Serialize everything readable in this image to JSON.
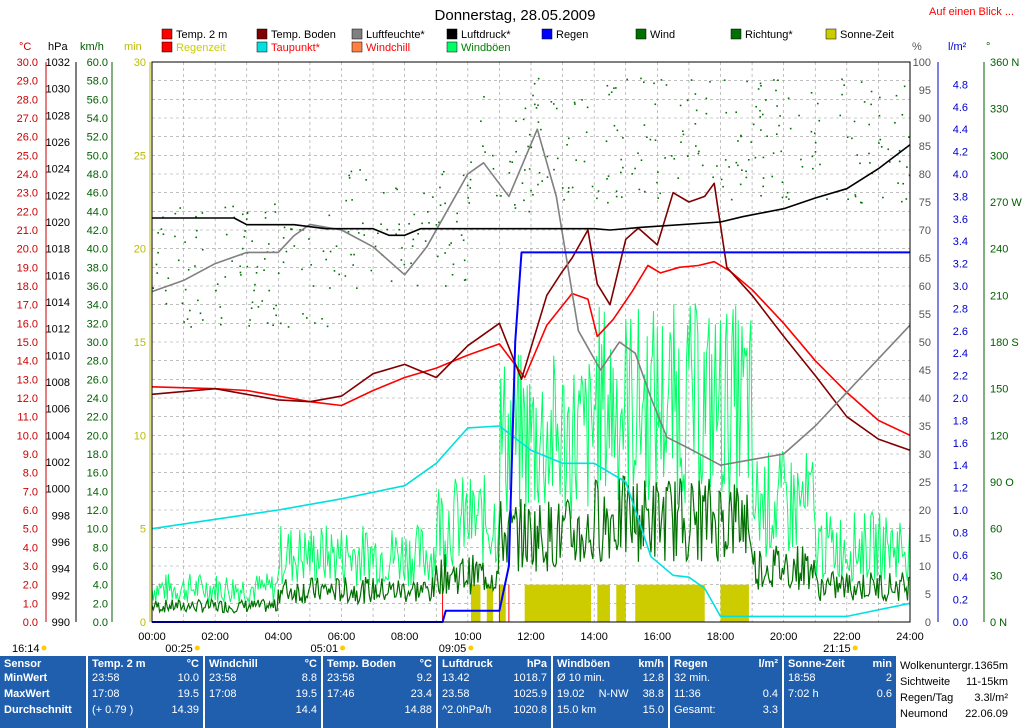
{
  "colors": {
    "temp": "#ff0000",
    "boden": "#800000",
    "feuchte": "#808080",
    "druck": "#000000",
    "taupunkt": "#00e0e0",
    "windchill": "#ff8040",
    "regen": "#0000ff",
    "wind": "#007000",
    "boeen": "#00ff66",
    "richtung": "#007000",
    "sonne": "#cccc00",
    "regenzeit": "#ffcc00"
  },
  "header": {
    "title": "Donnerstag, 28.05.2009",
    "link": "Auf einen Blick ..."
  },
  "legend": [
    {
      "label": "Temp. 2 m",
      "color": "#ff0000",
      "row": 0,
      "col": 0
    },
    {
      "label": "Temp. Boden",
      "color": "#800000",
      "row": 0,
      "col": 1
    },
    {
      "label": "Luftfeuchte*",
      "color": "#808080",
      "row": 0,
      "col": 2
    },
    {
      "label": "Luftdruck*",
      "color": "#000000",
      "row": 0,
      "col": 3
    },
    {
      "label": "Regen",
      "color": "#0000ff",
      "row": 0,
      "col": 4
    },
    {
      "label": "Wind",
      "color": "#007000",
      "row": 0,
      "col": 5
    },
    {
      "label": "Richtung*",
      "color": "#007000",
      "row": 0,
      "col": 6
    },
    {
      "label": "Sonne-Zeit",
      "color": "#cccc00",
      "row": 0,
      "col": 7
    },
    {
      "label": "Regenzeit",
      "color": "#ff0000",
      "row": 1,
      "col": 0,
      "textColor": "#cccc00"
    },
    {
      "label": "Taupunkt*",
      "color": "#00e0e0",
      "row": 1,
      "col": 1,
      "textColor": "#ff0000"
    },
    {
      "label": "Windchill",
      "color": "#ff8040",
      "row": 1,
      "col": 2,
      "textColor": "#ff0000"
    },
    {
      "label": "Windböen",
      "color": "#00ff66",
      "row": 1,
      "col": 3,
      "textColor": "#008000"
    }
  ],
  "axes": {
    "units": {
      "temp": "°C",
      "hpa": "hPa",
      "kmh": "km/h",
      "min": "min",
      "pct": "%",
      "lm2": "l/m²",
      "deg": "°"
    },
    "temp": [
      "30.0",
      "29.0",
      "28.0",
      "27.0",
      "26.0",
      "25.0",
      "24.0",
      "23.0",
      "22.0",
      "21.0",
      "20.0",
      "19.0",
      "18.0",
      "17.0",
      "16.0",
      "15.0",
      "14.0",
      "13.0",
      "12.0",
      "11.0",
      "10.0",
      "9.0",
      "8.0",
      "7.0",
      "6.0",
      "5.0",
      "4.0",
      "3.0",
      "2.0",
      "1.0",
      "0.0"
    ],
    "hpa": [
      "1032",
      "1030",
      "1028",
      "1026",
      "1024",
      "1022",
      "1020",
      "1018",
      "1016",
      "1014",
      "1012",
      "1010",
      "1008",
      "1006",
      "1004",
      "1002",
      "1000",
      "998",
      "996",
      "994",
      "992",
      "990"
    ],
    "kmh": [
      "60.0",
      "58.0",
      "56.0",
      "54.0",
      "52.0",
      "50.0",
      "48.0",
      "46.0",
      "44.0",
      "42.0",
      "40.0",
      "38.0",
      "36.0",
      "34.0",
      "32.0",
      "30.0",
      "28.0",
      "26.0",
      "24.0",
      "22.0",
      "20.0",
      "18.0",
      "16.0",
      "14.0",
      "12.0",
      "10.0",
      "8.0",
      "6.0",
      "4.0",
      "2.0",
      "0.0"
    ],
    "min": [
      "30",
      "25",
      "20",
      "15",
      "10",
      "5",
      "0"
    ],
    "pct": [
      "100",
      "95",
      "90",
      "85",
      "80",
      "75",
      "70",
      "65",
      "60",
      "55",
      "50",
      "45",
      "40",
      "35",
      "30",
      "25",
      "20",
      "15",
      "10",
      "5",
      "0"
    ],
    "lm2": [
      "4.8",
      "4.6",
      "4.4",
      "4.2",
      "4.0",
      "3.8",
      "3.6",
      "3.4",
      "3.2",
      "3.0",
      "2.8",
      "2.6",
      "2.4",
      "2.2",
      "2.0",
      "1.8",
      "1.6",
      "1.4",
      "1.2",
      "1.0",
      "0.8",
      "0.6",
      "0.4",
      "0.2",
      "0.0"
    ],
    "deg": [
      {
        "v": 360,
        "t": "360 N"
      },
      {
        "v": 330,
        "t": "330"
      },
      {
        "v": 300,
        "t": "300"
      },
      {
        "v": 270,
        "t": "270 W"
      },
      {
        "v": 240,
        "t": "240"
      },
      {
        "v": 210,
        "t": "210"
      },
      {
        "v": 180,
        "t": "180 S"
      },
      {
        "v": 150,
        "t": "150"
      },
      {
        "v": 120,
        "t": "120"
      },
      {
        "v": 90,
        "t": "90 O"
      },
      {
        "v": 60,
        "t": "60"
      },
      {
        "v": 30,
        "t": "30"
      },
      {
        "v": 0,
        "t": "0 N"
      }
    ],
    "x": [
      "00:00",
      "02:00",
      "04:00",
      "06:00",
      "08:00",
      "10:00",
      "12:00",
      "14:00",
      "16:00",
      "18:00",
      "20:00",
      "22:00",
      "24:00"
    ],
    "events": [
      {
        "t": "16:14",
        "h": -7.77,
        "c": "#ffcc00"
      },
      {
        "t": "00:25",
        "h": 0.42,
        "c": "#ffcc00"
      },
      {
        "t": "05:01",
        "h": 5.02,
        "c": "#ffcc00"
      },
      {
        "t": "09:05",
        "h": 9.08,
        "c": "#ffcc00"
      },
      {
        "t": "21:15",
        "h": 21.25,
        "c": "#ffcc00"
      }
    ]
  },
  "chart_data": {
    "type": "line",
    "xlim": [
      0,
      24
    ],
    "series": [
      {
        "name": "Temp. 2 m",
        "unit": "°C",
        "color": "#ff0000",
        "points": [
          [
            0,
            12.6
          ],
          [
            2,
            12.5
          ],
          [
            3,
            12.4
          ],
          [
            4,
            12.1
          ],
          [
            5,
            11.8
          ],
          [
            6,
            11.6
          ],
          [
            7,
            12.4
          ],
          [
            8,
            13.1
          ],
          [
            9,
            13.6
          ],
          [
            10,
            14.3
          ],
          [
            11,
            14.9
          ],
          [
            11.8,
            13.1
          ],
          [
            12.5,
            15.9
          ],
          [
            13.3,
            17.6
          ],
          [
            13.8,
            17.3
          ],
          [
            14.1,
            15.3
          ],
          [
            14.6,
            16.2
          ],
          [
            15.2,
            17.7
          ],
          [
            15.7,
            19.1
          ],
          [
            16.1,
            18.7
          ],
          [
            16.7,
            19.0
          ],
          [
            17.3,
            19.1
          ],
          [
            17.8,
            19.3
          ],
          [
            18.3,
            18.8
          ],
          [
            19,
            17.8
          ],
          [
            20,
            16.0
          ],
          [
            21,
            14.0
          ],
          [
            22,
            12.3
          ],
          [
            23,
            10.8
          ],
          [
            24,
            10.0
          ]
        ]
      },
      {
        "name": "Temp. Boden",
        "unit": "°C",
        "color": "#800000",
        "points": [
          [
            0,
            12.2
          ],
          [
            2,
            12.5
          ],
          [
            4,
            11.9
          ],
          [
            5,
            11.8
          ],
          [
            6,
            12.1
          ],
          [
            7,
            13.3
          ],
          [
            8,
            13.8
          ],
          [
            9,
            13.1
          ],
          [
            10,
            14.8
          ],
          [
            11,
            16.0
          ],
          [
            11.7,
            13.0
          ],
          [
            12.5,
            17.5
          ],
          [
            13.0,
            18.8
          ],
          [
            13.3,
            19.5
          ],
          [
            13.8,
            21.0
          ],
          [
            14.1,
            18.1
          ],
          [
            14.5,
            17.0
          ],
          [
            15,
            20.5
          ],
          [
            15.4,
            21.1
          ],
          [
            16,
            20.2
          ],
          [
            16.5,
            23.0
          ],
          [
            17,
            22.5
          ],
          [
            17.5,
            22.8
          ],
          [
            17.8,
            23.5
          ],
          [
            18.2,
            19.0
          ],
          [
            19,
            17.5
          ],
          [
            20,
            15.3
          ],
          [
            21,
            13.2
          ],
          [
            22,
            11.0
          ],
          [
            23,
            9.8
          ],
          [
            24,
            9.2
          ]
        ]
      },
      {
        "name": "Luftfeuchte*",
        "unit": "%",
        "color": "#808080",
        "points": [
          [
            0,
            59
          ],
          [
            1,
            61
          ],
          [
            2,
            64
          ],
          [
            3,
            66
          ],
          [
            4,
            66
          ],
          [
            4.5,
            69
          ],
          [
            5,
            71
          ],
          [
            6,
            70
          ],
          [
            7,
            67
          ],
          [
            8,
            62
          ],
          [
            8.7,
            67
          ],
          [
            9.2,
            72
          ],
          [
            10,
            80
          ],
          [
            10.5,
            82
          ],
          [
            11.3,
            76
          ],
          [
            12.2,
            88
          ],
          [
            12.8,
            76
          ],
          [
            13.5,
            52
          ],
          [
            14.2,
            45
          ],
          [
            14.8,
            50
          ],
          [
            15.3,
            48
          ],
          [
            15.8,
            40
          ],
          [
            16.3,
            33
          ],
          [
            17,
            31
          ],
          [
            18,
            28
          ],
          [
            19,
            29
          ],
          [
            20,
            30
          ],
          [
            21,
            35
          ],
          [
            22,
            41
          ],
          [
            23,
            47
          ],
          [
            24,
            53
          ]
        ]
      },
      {
        "name": "Luftdruck*",
        "unit": "hPa",
        "color": "#000000",
        "points": [
          [
            0,
            1020.3
          ],
          [
            2.6,
            1020.3
          ],
          [
            3,
            1019.8
          ],
          [
            4.5,
            1019.8
          ],
          [
            5.5,
            1019.5
          ],
          [
            7,
            1019.5
          ],
          [
            7.5,
            1019.0
          ],
          [
            8,
            1019.0
          ],
          [
            8.5,
            1019.5
          ],
          [
            10,
            1019.5
          ],
          [
            14,
            1019.5
          ],
          [
            14.5,
            1019.4
          ],
          [
            15.5,
            1019.6
          ],
          [
            18,
            1020.0
          ],
          [
            18.7,
            1020.4
          ],
          [
            20,
            1021.0
          ],
          [
            21,
            1021.8
          ],
          [
            22,
            1022.5
          ],
          [
            23,
            1024.0
          ],
          [
            24,
            1025.8
          ]
        ]
      },
      {
        "name": "Taupunkt*",
        "unit": "°C",
        "color": "#00e0e0",
        "points": [
          [
            0,
            5.0
          ],
          [
            2,
            5.5
          ],
          [
            4,
            6.0
          ],
          [
            6,
            6.6
          ],
          [
            8,
            7.3
          ],
          [
            9,
            8.5
          ],
          [
            10,
            10.4
          ],
          [
            11,
            10.5
          ],
          [
            12,
            9.2
          ],
          [
            13,
            8.5
          ],
          [
            14,
            8.5
          ],
          [
            15,
            7.5
          ],
          [
            15.8,
            3.5
          ],
          [
            16.5,
            2.5
          ],
          [
            17,
            2.4
          ],
          [
            17.5,
            1.8
          ],
          [
            18,
            0.3
          ],
          [
            22,
            0.3
          ],
          [
            24,
            1.0
          ]
        ]
      },
      {
        "name": "Regen",
        "unit": "l/m²",
        "color": "#0000ff",
        "points": [
          [
            0,
            0
          ],
          [
            9.2,
            0
          ],
          [
            9.3,
            0.1
          ],
          [
            11,
            0.1
          ],
          [
            11.3,
            0.5
          ],
          [
            11.5,
            2.5
          ],
          [
            11.7,
            3.3
          ],
          [
            24,
            3.3
          ]
        ]
      }
    ],
    "wind_stats": {
      "base": 3.5,
      "amp": 4.0
    },
    "boeen_stats": {
      "base": 8.0,
      "amp": 6.0
    },
    "sun_intervals": [
      [
        10.1,
        10.4
      ],
      [
        10.6,
        10.8
      ],
      [
        11.0,
        11.2
      ],
      [
        11.8,
        13.9
      ],
      [
        14.1,
        14.5
      ],
      [
        14.7,
        15.0
      ],
      [
        15.3,
        17.5
      ],
      [
        18.0,
        18.9
      ]
    ],
    "regenzeit_markers": [
      9.2,
      11.0,
      11.3
    ]
  },
  "table": {
    "sensor": {
      "h": "Sensor",
      "min": "MinWert",
      "max": "MaxWert",
      "avg": "Durchschnitt"
    },
    "temp": {
      "h": "Temp. 2 m",
      "u": "°C",
      "min_t": "23:58",
      "min": "10.0",
      "max_t": "17:08",
      "max": "19.5",
      "avg_t": "(+ 0.79 )",
      "avg": "14.39"
    },
    "windchill": {
      "h": "Windchill",
      "u": "°C",
      "min_t": "23:58",
      "min": "8.8",
      "max_t": "17:08",
      "max": "19.5",
      "avg": "14.4"
    },
    "boden": {
      "h": "Temp. Boden",
      "u": "°C",
      "min_t": "23:58",
      "min": "9.2",
      "max_t": "17:46",
      "max": "23.4",
      "avg": "14.88"
    },
    "druck": {
      "h": "Luftdruck",
      "u": "hPa",
      "min_t": "13.42",
      "min": "1018.7",
      "max_t": "23.58",
      "max": "1025.9",
      "avg_t": "^2.0hPa/h",
      "avg": "1020.8"
    },
    "boeen": {
      "h": "Windböen",
      "u": "km/h",
      "r1": "Ø 10 min.",
      "r1v": "12.8",
      "r2": "19.02",
      "r2m": "N-NW",
      "r2v": "38.8",
      "r3": "15.0 km",
      "r3v": "15.0"
    },
    "regen": {
      "h": "Regen",
      "u": "l/m²",
      "r1": "32 min.",
      "r2": "11:36",
      "r2v": "0.4",
      "r3": "Gesamt:",
      "r3v": "3.3"
    },
    "sonne": {
      "h": "Sonne-Zeit",
      "u": "min",
      "r2": "18:58",
      "r2v": "2",
      "r3": "7:02 h",
      "r3v": "0.6"
    },
    "side": [
      [
        "Wolkenuntergr.",
        "1365m"
      ],
      [
        "Sichtweite",
        "11-15km"
      ],
      [
        "Regen/Tag",
        "3.3l/m²"
      ],
      [
        "Neumond",
        "22.06.09"
      ]
    ]
  }
}
